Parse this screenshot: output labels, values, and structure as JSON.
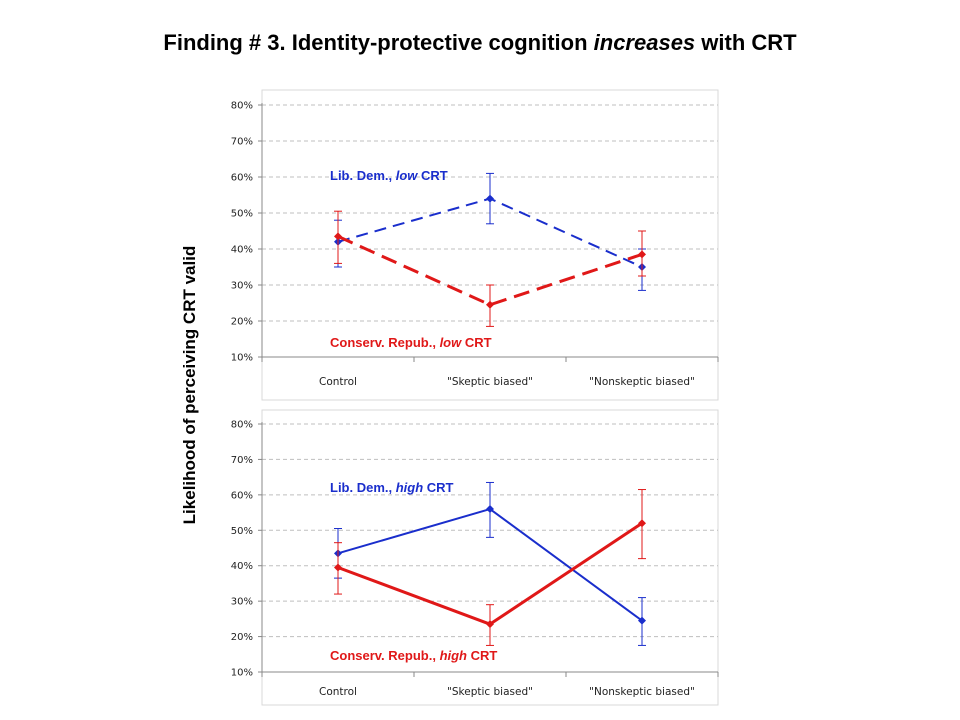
{
  "title": {
    "prefix": "Finding # 3. Identity-protective cognition ",
    "emph": "increases",
    "suffix": " with CRT"
  },
  "ylabel": "Likelihood of perceiving CRT valid",
  "colors": {
    "dem": "#1a2ecc",
    "rep": "#e01818",
    "grid": "#bfbfbf",
    "axis": "#888888"
  },
  "chart_data": [
    {
      "type": "line",
      "categories": [
        "Control",
        "\"Skeptic biased\"",
        "\"Nonskeptic biased\""
      ],
      "yticks": [
        "10%",
        "20%",
        "30%",
        "40%",
        "50%",
        "60%",
        "70%",
        "80%"
      ],
      "ylim": [
        0.1,
        0.8
      ],
      "grid": true,
      "series": [
        {
          "key": "dem",
          "label_pre": "Lib. Dem., ",
          "label_em": "low",
          "label_post": " CRT",
          "style": "dashed",
          "values": [
            0.42,
            0.54,
            0.35
          ],
          "err_low": [
            0.35,
            0.47,
            0.285
          ],
          "err_high": [
            0.48,
            0.61,
            0.4
          ]
        },
        {
          "key": "rep",
          "label_pre": "Conserv. Repub., ",
          "label_em": "low",
          "label_post": " CRT",
          "style": "dashed",
          "values": [
            0.435,
            0.245,
            0.385
          ],
          "err_low": [
            0.36,
            0.185,
            0.325
          ],
          "err_high": [
            0.505,
            0.3,
            0.45
          ]
        }
      ]
    },
    {
      "type": "line",
      "categories": [
        "Control",
        "\"Skeptic biased\"",
        "\"Nonskeptic biased\""
      ],
      "yticks": [
        "10%",
        "20%",
        "30%",
        "40%",
        "50%",
        "60%",
        "70%",
        "80%"
      ],
      "ylim": [
        0.1,
        0.8
      ],
      "grid": true,
      "series": [
        {
          "key": "dem",
          "label_pre": "Lib. Dem., ",
          "label_em": "high",
          "label_post": " CRT",
          "style": "solid",
          "values": [
            0.435,
            0.56,
            0.245
          ],
          "err_low": [
            0.365,
            0.48,
            0.175
          ],
          "err_high": [
            0.505,
            0.635,
            0.31
          ]
        },
        {
          "key": "rep",
          "label_pre": "Conserv. Repub., ",
          "label_em": "high",
          "label_post": " CRT",
          "style": "solid",
          "values": [
            0.395,
            0.235,
            0.52
          ],
          "err_low": [
            0.32,
            0.175,
            0.42
          ],
          "err_high": [
            0.465,
            0.29,
            0.615
          ]
        }
      ]
    }
  ]
}
